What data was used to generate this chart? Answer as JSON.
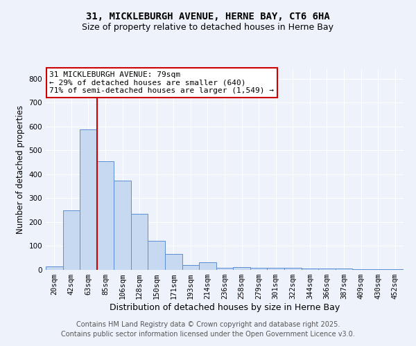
{
  "title": "31, MICKLEBURGH AVENUE, HERNE BAY, CT6 6HA",
  "subtitle": "Size of property relative to detached houses in Herne Bay",
  "xlabel": "Distribution of detached houses by size in Herne Bay",
  "ylabel": "Number of detached properties",
  "categories": [
    "20sqm",
    "42sqm",
    "63sqm",
    "85sqm",
    "106sqm",
    "128sqm",
    "150sqm",
    "171sqm",
    "193sqm",
    "214sqm",
    "236sqm",
    "258sqm",
    "279sqm",
    "301sqm",
    "322sqm",
    "344sqm",
    "366sqm",
    "387sqm",
    "409sqm",
    "430sqm",
    "452sqm"
  ],
  "values": [
    15,
    248,
    588,
    455,
    375,
    235,
    122,
    68,
    20,
    32,
    10,
    12,
    10,
    10,
    10,
    5,
    5,
    5,
    2,
    2,
    2
  ],
  "bar_color": "#c6d9f0",
  "bar_edge_color": "#5b8ed6",
  "bar_edge_width": 0.7,
  "vline_x": 3.0,
  "vline_color": "#cc0000",
  "annotation_text": "31 MICKLEBURGH AVENUE: 79sqm\n← 29% of detached houses are smaller (640)\n71% of semi-detached houses are larger (1,549) →",
  "annotation_box_color": "#ffffff",
  "annotation_box_edge_color": "#cc0000",
  "ylim": [
    0,
    840
  ],
  "yticks": [
    0,
    100,
    200,
    300,
    400,
    500,
    600,
    700,
    800
  ],
  "bg_color": "#eef2fb",
  "grid_color": "#ffffff",
  "footer_text": "Contains HM Land Registry data © Crown copyright and database right 2025.\nContains public sector information licensed under the Open Government Licence v3.0.",
  "title_fontsize": 10,
  "subtitle_fontsize": 9,
  "xlabel_fontsize": 9,
  "ylabel_fontsize": 8.5,
  "tick_fontsize": 7.5,
  "annotation_fontsize": 8,
  "footer_fontsize": 7
}
